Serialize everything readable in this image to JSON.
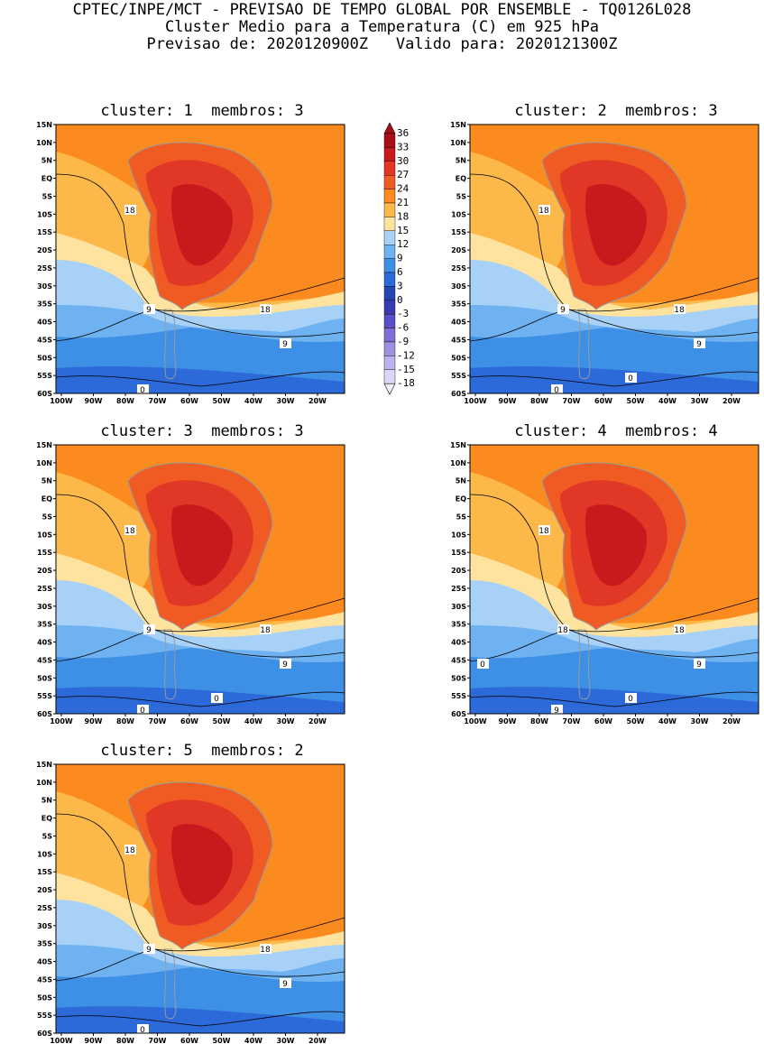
{
  "header": {
    "line1": "CPTEC/INPE/MCT - PREVISAO DE TEMPO GLOBAL POR ENSEMBLE - TQ0126L028",
    "line2": "Cluster Medio para a Temperatura (C) em 925 hPa",
    "line3": "Previsao de: 2020120900Z   Valido para: 2020121300Z"
  },
  "lat_labels": [
    "15N",
    "10N",
    "5N",
    "EQ",
    "5S",
    "10S",
    "15S",
    "20S",
    "25S",
    "30S",
    "35S",
    "40S",
    "45S",
    "50S",
    "55S",
    "60S"
  ],
  "lon_labels": [
    "100W",
    "90W",
    "80W",
    "70W",
    "60W",
    "50W",
    "40W",
    "30W",
    "20W"
  ],
  "legend": {
    "values": [
      "36",
      "33",
      "30",
      "27",
      "24",
      "21",
      "18",
      "15",
      "12",
      "9",
      "6",
      "3",
      "0",
      "-3",
      "-6",
      "-9",
      "-12",
      "-15",
      "-18"
    ],
    "colors": [
      "#a50f15",
      "#c81a1c",
      "#e03726",
      "#f05a23",
      "#fb8a1f",
      "#fdb84a",
      "#fde39e",
      "#a7d1f6",
      "#6fb2f1",
      "#3e8fe6",
      "#2b6ad8",
      "#2447b5",
      "#3b3bb0",
      "#5b4fc7",
      "#7c6fd6",
      "#9d91e2",
      "#bdb3ec",
      "#ddd6f5"
    ]
  },
  "panels": [
    {
      "title": "cluster: 1  membros: 3",
      "labels": [
        "18",
        "18",
        "9",
        "9",
        "0"
      ]
    },
    {
      "title": "cluster: 2  membros: 3",
      "labels": [
        "18",
        "18",
        "9",
        "9",
        "0",
        "0"
      ]
    },
    {
      "title": "cluster: 3  membros: 3",
      "labels": [
        "18",
        "18",
        "9",
        "9",
        "0",
        "0"
      ]
    },
    {
      "title": "cluster: 4  membros: 4",
      "labels": [
        "18",
        "18",
        "18",
        "9",
        "9",
        "0",
        "0"
      ]
    },
    {
      "title": "cluster: 5  membros: 2",
      "labels": [
        "18",
        "18",
        "9",
        "9",
        "0"
      ]
    }
  ]
}
